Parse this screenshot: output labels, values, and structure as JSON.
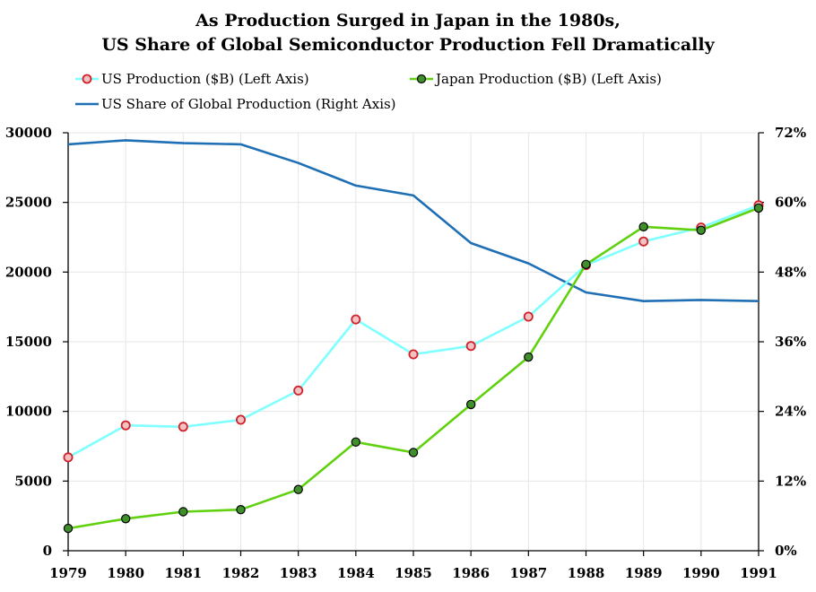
{
  "chart_data": {
    "type": "line",
    "title_line1": "As Production Surged in Japan in the 1980s,",
    "title_line2": "US Share of  Global Semiconductor Production Fell Dramatically",
    "x": [
      "1979",
      "1980",
      "1981",
      "1982",
      "1983",
      "1984",
      "1985",
      "1986",
      "1987",
      "1988",
      "1989",
      "1990",
      "1991"
    ],
    "left_axis": {
      "ylim": [
        0,
        30000
      ],
      "ticks": [
        0,
        5000,
        10000,
        15000,
        20000,
        25000,
        30000
      ],
      "tick_labels": [
        "0",
        "5000",
        "10000",
        "15000",
        "20000",
        "25000",
        "30000"
      ]
    },
    "right_axis": {
      "ylim": [
        0,
        72
      ],
      "ticks": [
        0,
        12,
        24,
        36,
        48,
        60,
        72
      ],
      "tick_labels": [
        "0%",
        "12%",
        "24%",
        "36%",
        "48%",
        "60%",
        "72%"
      ]
    },
    "grid": true,
    "legend_position": "top",
    "series": [
      {
        "name": "US Production ($B) (Left Axis)",
        "axis": "left",
        "line_color": "#7fffff",
        "marker_fill": "#f2c2c2",
        "marker_edge": "#d0202a",
        "values": [
          6700,
          9000,
          8900,
          9400,
          11500,
          16600,
          14100,
          14700,
          16800,
          20500,
          22200,
          23200,
          24800
        ]
      },
      {
        "name": "Japan Production ($B) (Left Axis)",
        "axis": "left",
        "line_color": "#5fd10f",
        "marker_fill": "#3f8f2a",
        "marker_edge": "#000000",
        "values": [
          1600,
          2300,
          2800,
          2950,
          4400,
          7800,
          7050,
          10500,
          13900,
          20550,
          23250,
          23000,
          24600
        ]
      },
      {
        "name": "US Share of Global Production (Right Axis)",
        "axis": "right",
        "line_color": "#1f6fb5",
        "values": [
          70.0,
          70.7,
          70.2,
          70.0,
          66.8,
          62.9,
          61.2,
          53.0,
          49.5,
          44.5,
          43.0,
          43.2,
          43.0
        ]
      }
    ]
  }
}
